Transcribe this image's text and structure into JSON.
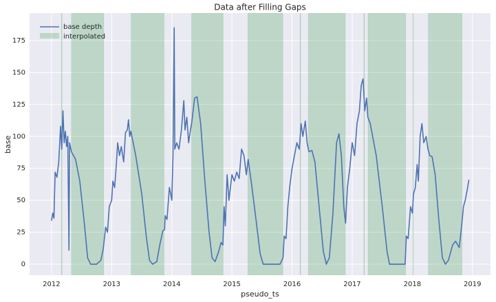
{
  "chart_data": {
    "type": "line",
    "title": "Data after Filling Gaps",
    "x_label": "pseudo_ts",
    "y_label": "base",
    "x": [
      2012.0,
      2012.02,
      2012.04,
      2012.06,
      2012.09,
      2012.12,
      2012.15,
      2012.17,
      2012.19,
      2012.21,
      2012.23,
      2012.25,
      2012.27,
      2012.29,
      2012.3,
      2012.33,
      2012.4,
      2012.47,
      2012.55,
      2012.6,
      2012.65,
      2012.75,
      2012.82,
      2012.86,
      2012.9,
      2012.93,
      2012.96,
      2013.0,
      2013.02,
      2013.05,
      2013.08,
      2013.1,
      2013.13,
      2013.16,
      2013.2,
      2013.23,
      2013.26,
      2013.28,
      2013.3,
      2013.32,
      2013.4,
      2013.5,
      2013.58,
      2013.63,
      2013.68,
      2013.75,
      2013.8,
      2013.85,
      2013.88,
      2013.89,
      2013.92,
      2013.96,
      2014.0,
      2014.02,
      2014.04,
      2014.05,
      2014.08,
      2014.12,
      2014.16,
      2014.2,
      2014.22,
      2014.25,
      2014.28,
      2014.31,
      2014.33,
      2014.38,
      2014.42,
      2014.48,
      2014.55,
      2014.62,
      2014.67,
      2014.72,
      2014.78,
      2014.82,
      2014.85,
      2014.87,
      2014.89,
      2014.92,
      2014.95,
      2015.0,
      2015.04,
      2015.08,
      2015.12,
      2015.16,
      2015.2,
      2015.24,
      2015.27,
      2015.32,
      2015.4,
      2015.47,
      2015.52,
      2015.8,
      2015.85,
      2015.87,
      2015.9,
      2015.93,
      2015.96,
      2016.0,
      2016.04,
      2016.08,
      2016.12,
      2016.15,
      2016.18,
      2016.22,
      2016.25,
      2016.28,
      2016.33,
      2016.38,
      2016.45,
      2016.52,
      2016.57,
      2016.62,
      2016.68,
      2016.74,
      2016.78,
      2016.82,
      2016.86,
      2016.89,
      2016.92,
      2016.96,
      2017.0,
      2017.04,
      2017.08,
      2017.12,
      2017.15,
      2017.18,
      2017.21,
      2017.24,
      2017.26,
      2017.3,
      2017.4,
      2017.5,
      2017.58,
      2017.62,
      2017.88,
      2017.9,
      2017.93,
      2017.97,
      2018.0,
      2018.02,
      2018.05,
      2018.08,
      2018.1,
      2018.13,
      2018.16,
      2018.19,
      2018.23,
      2018.26,
      2018.29,
      2018.33,
      2018.38,
      2018.44,
      2018.5,
      2018.55,
      2018.6,
      2018.67,
      2018.72,
      2018.78,
      2018.82,
      2018.85,
      2018.88,
      2018.92,
      2018.94
    ],
    "series": [
      {
        "name": "base depth",
        "color": "#4c72b0",
        "values": [
          34,
          40,
          36,
          72,
          68,
          80,
          108,
          90,
          120,
          95,
          104,
          92,
          100,
          11,
          95,
          88,
          82,
          65,
          30,
          5,
          0,
          0,
          3,
          12,
          29,
          25,
          45,
          50,
          65,
          60,
          80,
          95,
          85,
          92,
          80,
          103,
          105,
          113,
          100,
          104,
          85,
          55,
          20,
          3,
          0,
          2,
          15,
          26,
          27,
          38,
          35,
          60,
          50,
          85,
          185,
          90,
          95,
          90,
          105,
          128,
          105,
          115,
          95,
          105,
          110,
          130,
          131,
          110,
          65,
          25,
          5,
          2,
          10,
          17,
          15,
          45,
          30,
          70,
          50,
          70,
          65,
          72,
          67,
          90,
          85,
          70,
          82,
          65,
          35,
          8,
          0,
          0,
          5,
          22,
          20,
          45,
          60,
          75,
          85,
          95,
          90,
          110,
          100,
          112,
          95,
          88,
          89,
          80,
          45,
          10,
          0,
          5,
          40,
          95,
          102,
          85,
          45,
          32,
          60,
          75,
          95,
          85,
          110,
          120,
          140,
          145,
          120,
          130,
          115,
          110,
          85,
          45,
          10,
          0,
          0,
          22,
          20,
          45,
          40,
          55,
          60,
          78,
          65,
          100,
          110,
          95,
          100,
          90,
          85,
          84,
          70,
          35,
          5,
          0,
          3,
          15,
          18,
          13,
          30,
          45,
          50,
          60,
          66
        ]
      }
    ],
    "spans": {
      "name": "interpolated",
      "color": "#55a868",
      "ranges": [
        [
          2012.163,
          2012.17
        ],
        [
          2012.331,
          2012.868
        ],
        [
          2013.324,
          2013.872
        ],
        [
          2014.329,
          2014.854
        ],
        [
          2015.265,
          2015.847
        ],
        [
          2016.132,
          2016.138
        ],
        [
          2016.269,
          2016.886
        ],
        [
          2017.194,
          2017.198
        ],
        [
          2017.263,
          2017.89
        ],
        [
          2018.005,
          2018.012
        ],
        [
          2018.267,
          2018.29
        ],
        [
          2018.301,
          2018.826
        ]
      ]
    },
    "xlim": [
      2011.635,
      2019.3
    ],
    "ylim": [
      -8.6,
      196.5
    ],
    "xticks": [
      2012,
      2013,
      2014,
      2015,
      2016,
      2017,
      2018,
      2019
    ],
    "yticks": [
      0,
      25,
      50,
      75,
      100,
      125,
      150,
      175
    ],
    "grid": true,
    "legend": "upper left"
  }
}
